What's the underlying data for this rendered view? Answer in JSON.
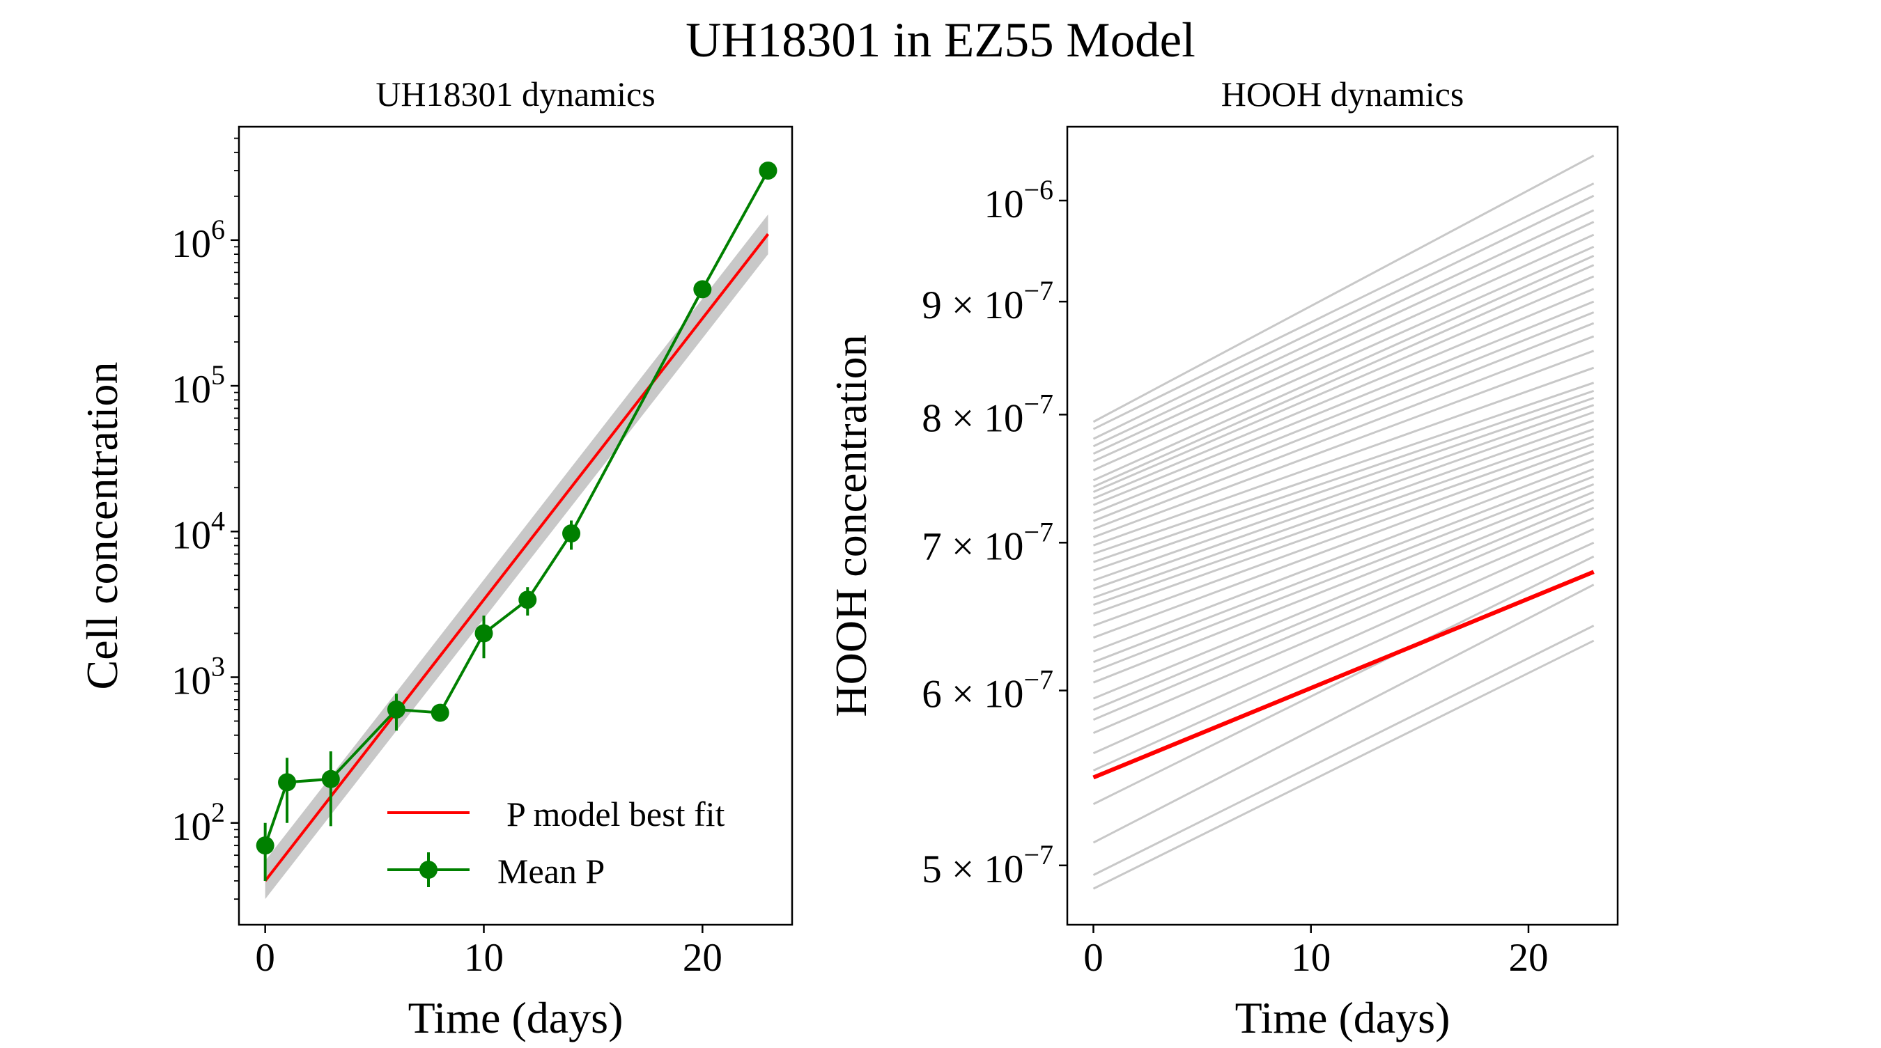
{
  "figure": {
    "title": "UH18301 in EZ55 Model"
  },
  "chart_data": [
    {
      "type": "line",
      "title": "UH18301 dynamics",
      "xlabel": "Time (days)",
      "ylabel": "Cell concentration",
      "yscale": "log",
      "xlim": [
        -1.2,
        24.1
      ],
      "ylim": [
        20,
        6000000
      ],
      "xticks": [
        0,
        10,
        20
      ],
      "yticks": [
        100,
        1000,
        10000,
        100000,
        1000000
      ],
      "ytick_labels": [
        [
          "10",
          "2"
        ],
        [
          "10",
          "3"
        ],
        [
          "10",
          "4"
        ],
        [
          "10",
          "5"
        ],
        [
          "10",
          "6"
        ]
      ],
      "legend": {
        "position": "lower-right",
        "entries": [
          {
            "label": "P model best fit",
            "color": "#ff0000",
            "marker": "line"
          },
          {
            "label": "Mean P",
            "color": "#008000",
            "marker": "line-dot-errorbar"
          }
        ]
      },
      "series": [
        {
          "name": "Mean P",
          "color": "#008000",
          "x": [
            0,
            1,
            3,
            6,
            8,
            10,
            12,
            14,
            20,
            23
          ],
          "y": [
            70,
            190,
            200,
            600,
            570,
            2000,
            3400,
            9700,
            460000,
            3000000
          ],
          "y_low": [
            40,
            100,
            95,
            430,
            570,
            1350,
            2650,
            7500,
            410000,
            3000000
          ],
          "y_high": [
            100,
            280,
            310,
            770,
            570,
            2650,
            4150,
            11900,
            510000,
            3000000
          ]
        },
        {
          "name": "P model best fit",
          "color": "#ff0000",
          "x": [
            0,
            23
          ],
          "y": [
            40,
            1100000
          ]
        }
      ],
      "uncertainty_band": {
        "color": "#c8c8c8",
        "x": [
          0,
          23
        ],
        "y_low": [
          30,
          800000
        ],
        "y_high": [
          55,
          1500000
        ]
      }
    },
    {
      "type": "line",
      "title": "HOOH dynamics",
      "xlabel": "Time (days)",
      "ylabel": "HOOH concentration",
      "yscale": "log",
      "xlim": [
        -1.2,
        24.1
      ],
      "ylim": [
        4.7e-07,
        1.08e-06
      ],
      "xticks": [
        0,
        10,
        20
      ],
      "yticks": [
        5e-07,
        6e-07,
        7e-07,
        8e-07,
        9e-07,
        1e-06
      ],
      "ytick_labels": [
        [
          "5 × 10",
          "−7"
        ],
        [
          "6 × 10",
          "−7"
        ],
        [
          "7 × 10",
          "−7"
        ],
        [
          "8 × 10",
          "−7"
        ],
        [
          "9 × 10",
          "−7"
        ],
        [
          "10",
          "−6"
        ]
      ],
      "best_fit": {
        "color": "#ff0000",
        "x": [
          0,
          23
        ],
        "y": [
          5.48e-07,
          6.79e-07
        ]
      },
      "ensemble": {
        "color": "#c8c8c8",
        "x": [
          0,
          23
        ],
        "start_values": [
          4.88e-07,
          4.95e-07,
          5.12e-07,
          5.33e-07,
          5.52e-07,
          5.62e-07,
          5.74e-07,
          5.82e-07,
          5.88e-07,
          5.95e-07,
          6.05e-07,
          6.12e-07,
          6.18e-07,
          6.25e-07,
          6.34e-07,
          6.42e-07,
          6.5e-07,
          6.56e-07,
          6.61e-07,
          6.67e-07,
          6.73e-07,
          6.8e-07,
          6.86e-07,
          6.92e-07,
          6.98e-07,
          7.04e-07,
          7.1e-07,
          7.16e-07,
          7.22e-07,
          7.28e-07,
          7.33e-07,
          7.38e-07,
          7.42e-07,
          7.47e-07,
          7.55e-07,
          7.62e-07,
          7.68e-07,
          7.74e-07,
          7.8e-07,
          7.88e-07,
          7.94e-07
        ],
        "end_values": [
          6.32e-07,
          6.42e-07,
          6.7e-07,
          6.9e-07,
          7e-07,
          7.1e-07,
          7.18e-07,
          7.26e-07,
          7.32e-07,
          7.38e-07,
          7.44e-07,
          7.5e-07,
          7.56e-07,
          7.63e-07,
          7.7e-07,
          7.76e-07,
          7.82e-07,
          7.88e-07,
          7.95e-07,
          8.02e-07,
          8.08e-07,
          8.14e-07,
          8.2e-07,
          8.27e-07,
          8.4e-07,
          8.55e-07,
          8.68e-07,
          8.8e-07,
          8.9e-07,
          9e-07,
          9.12e-07,
          9.24e-07,
          9.35e-07,
          9.44e-07,
          9.53e-07,
          9.65e-07,
          9.78e-07,
          9.9e-07,
          1.005e-06,
          1.018e-06,
          1.048e-06
        ]
      }
    }
  ]
}
